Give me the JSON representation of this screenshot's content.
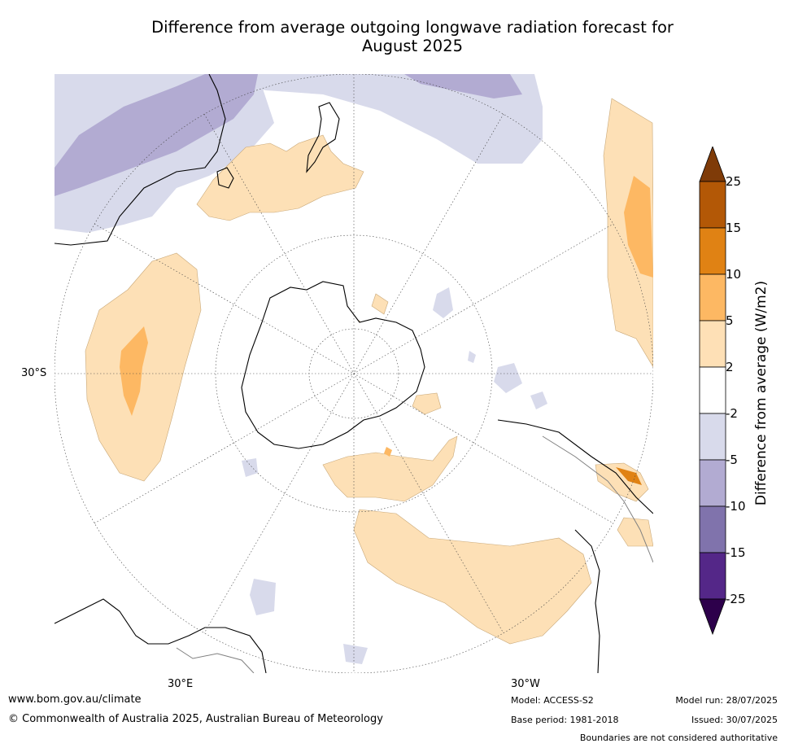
{
  "title_line1": "Difference from average outgoing longwave radiation forecast for",
  "title_line2": "August 2025",
  "map": {
    "projection": "south-polar-stereographic",
    "graticule_labels": {
      "lat_30s": "30°S",
      "lon_30e": "30°E",
      "lon_30w": "30°W"
    },
    "colors": {
      "land_coast": "#000000",
      "borders": "#808080",
      "grid": "#444444",
      "pos_2_5": "#fde0b6",
      "pos_5_10": "#fdb863",
      "pos_10_15": "#e08214",
      "pos_15_25": "#b35806",
      "neg_2_5": "#d8daeb",
      "neg_5_10": "#b2abd2",
      "neg_10_15": "#8073ac",
      "neg_15_25": "#542788"
    }
  },
  "colorbar": {
    "label": "Difference from average (W/m2)",
    "ticks": [
      "25",
      "15",
      "10",
      "5",
      "2",
      "-2",
      "-5",
      "-10",
      "-15",
      "-25"
    ],
    "bins": [
      {
        "range": "above 25",
        "color": "#7f3b08"
      },
      {
        "range": "15 to 25",
        "color": "#b35806"
      },
      {
        "range": "10 to 15",
        "color": "#e08214"
      },
      {
        "range": "5 to 10",
        "color": "#fdb863"
      },
      {
        "range": "2 to 5",
        "color": "#fee0b6"
      },
      {
        "range": "-2 to 2",
        "color": "#ffffff"
      },
      {
        "range": "-5 to -2",
        "color": "#d8daeb"
      },
      {
        "range": "-10 to -5",
        "color": "#b2abd2"
      },
      {
        "range": "-15 to -10",
        "color": "#8073ac"
      },
      {
        "range": "-25 to -15",
        "color": "#542788"
      },
      {
        "range": "below -25",
        "color": "#2d004b"
      }
    ]
  },
  "footer": {
    "website": "www.bom.gov.au/climate",
    "copyright": "© Commonwealth of Australia 2025, Australian Bureau of Meteorology",
    "model": "Model: ACCESS-S2",
    "base_period": "Base period: 1981-2018",
    "model_run": "Model run: 28/07/2025",
    "issued": "Issued: 30/07/2025",
    "disclaimer": "Boundaries are not considered authoritative"
  }
}
